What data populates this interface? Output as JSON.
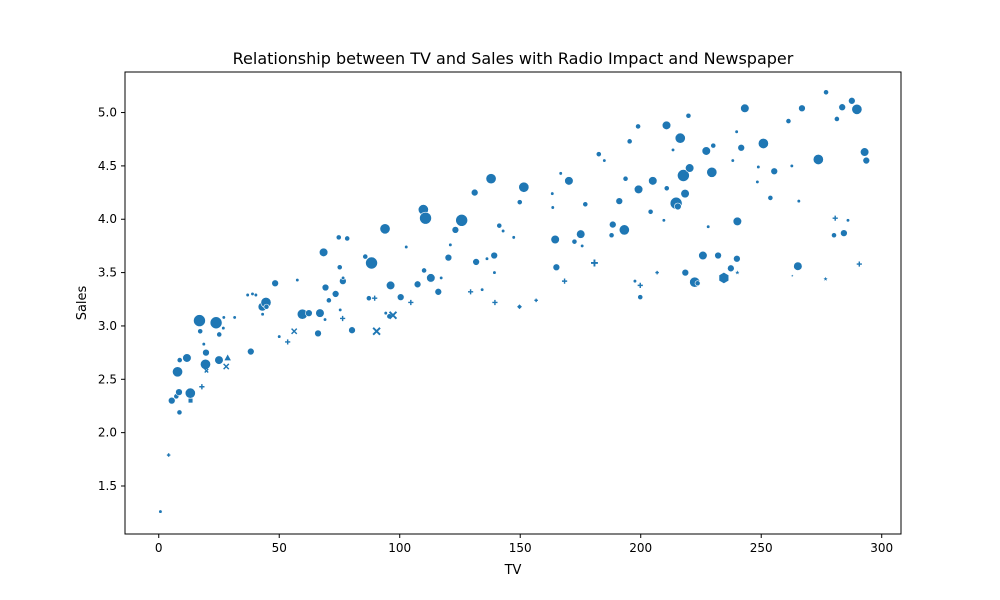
{
  "chart_data": {
    "type": "scatter",
    "title": "Relationship between TV and Sales with Radio Impact and Newspaper",
    "xlabel": "TV",
    "ylabel": "Sales",
    "xlim": [
      -14,
      308
    ],
    "ylim": [
      1.05,
      5.38
    ],
    "xticks": [
      0,
      50,
      100,
      150,
      200,
      250,
      300
    ],
    "yticks": [
      1.5,
      2.0,
      2.5,
      3.0,
      3.5,
      4.0,
      4.5,
      5.0
    ],
    "xtick_labels": [
      "0",
      "50",
      "100",
      "150",
      "200",
      "250",
      "300"
    ],
    "ytick_labels": [
      "1.5",
      "2.0",
      "2.5",
      "3.0",
      "3.5",
      "4.0",
      "4.5",
      "5.0"
    ],
    "grid": false,
    "legend": "none",
    "marker_color": "#1f77b4",
    "size_encoding": "Radio",
    "style_encoding": "Newspaper",
    "points": [
      {
        "x": 0.7,
        "y": 1.26,
        "s": 1,
        "m": "o"
      },
      {
        "x": 4.1,
        "y": 1.79,
        "s": 1,
        "m": "P"
      },
      {
        "x": 5.4,
        "y": 2.3,
        "s": 3,
        "m": "o"
      },
      {
        "x": 7.3,
        "y": 2.34,
        "s": 2,
        "m": "o"
      },
      {
        "x": 7.8,
        "y": 2.57,
        "s": 5,
        "m": "o"
      },
      {
        "x": 8.4,
        "y": 2.38,
        "s": 3,
        "m": "o"
      },
      {
        "x": 8.6,
        "y": 2.19,
        "s": 2,
        "m": "o"
      },
      {
        "x": 8.7,
        "y": 2.68,
        "s": 2,
        "m": "o"
      },
      {
        "x": 11.7,
        "y": 2.7,
        "s": 4,
        "m": "o"
      },
      {
        "x": 13.1,
        "y": 2.37,
        "s": 5,
        "m": "o"
      },
      {
        "x": 13.2,
        "y": 2.3,
        "s": 2,
        "m": "s"
      },
      {
        "x": 16.9,
        "y": 3.05,
        "s": 6,
        "m": "o"
      },
      {
        "x": 17.2,
        "y": 2.95,
        "s": 2,
        "m": "o"
      },
      {
        "x": 17.9,
        "y": 2.43,
        "s": 2,
        "m": "P"
      },
      {
        "x": 18.7,
        "y": 2.83,
        "s": 1,
        "m": "o"
      },
      {
        "x": 19.4,
        "y": 2.64,
        "s": 5,
        "m": "o"
      },
      {
        "x": 19.6,
        "y": 2.75,
        "s": 3,
        "m": "o"
      },
      {
        "x": 19.8,
        "y": 2.58,
        "s": 1,
        "m": "X"
      },
      {
        "x": 23.8,
        "y": 3.03,
        "s": 6,
        "m": "o"
      },
      {
        "x": 25.0,
        "y": 2.68,
        "s": 4,
        "m": "o"
      },
      {
        "x": 25.1,
        "y": 2.92,
        "s": 2,
        "m": "o"
      },
      {
        "x": 26.8,
        "y": 2.98,
        "s": 1,
        "m": "o"
      },
      {
        "x": 27.0,
        "y": 3.08,
        "s": 1,
        "m": "o"
      },
      {
        "x": 28.0,
        "y": 2.62,
        "s": 2,
        "m": "X"
      },
      {
        "x": 28.6,
        "y": 2.7,
        "s": 3,
        "m": "^"
      },
      {
        "x": 31.5,
        "y": 3.08,
        "s": 1,
        "m": "o"
      },
      {
        "x": 36.9,
        "y": 3.29,
        "s": 1,
        "m": "o"
      },
      {
        "x": 38.2,
        "y": 2.76,
        "s": 3,
        "m": "o"
      },
      {
        "x": 38.9,
        "y": 3.3,
        "s": 1,
        "m": "o"
      },
      {
        "x": 40.3,
        "y": 3.29,
        "s": 1,
        "m": "o"
      },
      {
        "x": 43.0,
        "y": 3.18,
        "s": 4,
        "m": "o"
      },
      {
        "x": 43.1,
        "y": 3.11,
        "s": 1,
        "m": "o"
      },
      {
        "x": 44.5,
        "y": 3.22,
        "s": 5,
        "m": "o"
      },
      {
        "x": 44.7,
        "y": 3.18,
        "s": 2,
        "m": "o"
      },
      {
        "x": 48.3,
        "y": 3.4,
        "s": 3,
        "m": "o"
      },
      {
        "x": 50.0,
        "y": 2.9,
        "s": 1,
        "m": "o"
      },
      {
        "x": 53.5,
        "y": 2.85,
        "s": 2,
        "m": "P"
      },
      {
        "x": 56.2,
        "y": 2.95,
        "s": 2,
        "m": "X"
      },
      {
        "x": 57.5,
        "y": 3.43,
        "s": 1,
        "m": "o"
      },
      {
        "x": 59.6,
        "y": 3.11,
        "s": 5,
        "m": "o"
      },
      {
        "x": 62.3,
        "y": 3.12,
        "s": 3,
        "m": "o"
      },
      {
        "x": 66.1,
        "y": 2.93,
        "s": 3,
        "m": "o"
      },
      {
        "x": 66.9,
        "y": 3.12,
        "s": 4,
        "m": "o"
      },
      {
        "x": 68.4,
        "y": 3.69,
        "s": 4,
        "m": "o"
      },
      {
        "x": 69.0,
        "y": 3.06,
        "s": 1,
        "m": "o"
      },
      {
        "x": 69.2,
        "y": 3.36,
        "s": 3,
        "m": "o"
      },
      {
        "x": 70.6,
        "y": 3.24,
        "s": 2,
        "m": "o"
      },
      {
        "x": 73.4,
        "y": 3.3,
        "s": 3,
        "m": "o"
      },
      {
        "x": 74.7,
        "y": 3.83,
        "s": 2,
        "m": "o"
      },
      {
        "x": 75.1,
        "y": 3.55,
        "s": 2,
        "m": "o"
      },
      {
        "x": 75.3,
        "y": 3.15,
        "s": 1,
        "m": "o"
      },
      {
        "x": 76.3,
        "y": 3.07,
        "s": 2,
        "m": "P"
      },
      {
        "x": 76.4,
        "y": 3.42,
        "s": 3,
        "m": "o"
      },
      {
        "x": 76.5,
        "y": 3.45,
        "s": 1,
        "m": "o"
      },
      {
        "x": 78.2,
        "y": 3.82,
        "s": 2,
        "m": "o"
      },
      {
        "x": 80.2,
        "y": 2.96,
        "s": 3,
        "m": "o"
      },
      {
        "x": 85.7,
        "y": 3.65,
        "s": 2,
        "m": "o"
      },
      {
        "x": 87.2,
        "y": 3.26,
        "s": 2,
        "m": "o"
      },
      {
        "x": 88.3,
        "y": 3.59,
        "s": 6,
        "m": "o"
      },
      {
        "x": 89.6,
        "y": 3.26,
        "s": 2,
        "m": "P"
      },
      {
        "x": 90.4,
        "y": 2.95,
        "s": 3,
        "m": "X"
      },
      {
        "x": 93.9,
        "y": 3.91,
        "s": 5,
        "m": "o"
      },
      {
        "x": 94.2,
        "y": 3.12,
        "s": 1,
        "m": "o"
      },
      {
        "x": 95.7,
        "y": 3.09,
        "s": 2,
        "m": "o"
      },
      {
        "x": 96.2,
        "y": 3.38,
        "s": 4,
        "m": "o"
      },
      {
        "x": 97.2,
        "y": 3.1,
        "s": 3,
        "m": "X"
      },
      {
        "x": 100.4,
        "y": 3.27,
        "s": 3,
        "m": "o"
      },
      {
        "x": 102.7,
        "y": 3.74,
        "s": 1,
        "m": "o"
      },
      {
        "x": 104.6,
        "y": 3.22,
        "s": 2,
        "m": "P"
      },
      {
        "x": 107.4,
        "y": 3.39,
        "s": 3,
        "m": "o"
      },
      {
        "x": 109.8,
        "y": 4.09,
        "s": 5,
        "m": "o"
      },
      {
        "x": 110.1,
        "y": 3.52,
        "s": 2,
        "m": "o"
      },
      {
        "x": 110.7,
        "y": 4.01,
        "s": 6,
        "m": "o"
      },
      {
        "x": 112.9,
        "y": 3.45,
        "s": 4,
        "m": "o"
      },
      {
        "x": 116.0,
        "y": 3.32,
        "s": 3,
        "m": "o"
      },
      {
        "x": 117.2,
        "y": 3.45,
        "s": 1,
        "m": "o"
      },
      {
        "x": 120.2,
        "y": 3.64,
        "s": 3,
        "m": "o"
      },
      {
        "x": 121.0,
        "y": 3.76,
        "s": 1,
        "m": "o"
      },
      {
        "x": 123.1,
        "y": 3.9,
        "s": 3,
        "m": "o"
      },
      {
        "x": 125.7,
        "y": 3.99,
        "s": 6,
        "m": "o"
      },
      {
        "x": 129.4,
        "y": 3.32,
        "s": 2,
        "m": "P"
      },
      {
        "x": 131.1,
        "y": 4.25,
        "s": 3,
        "m": "o"
      },
      {
        "x": 131.7,
        "y": 3.6,
        "s": 3,
        "m": "o"
      },
      {
        "x": 134.2,
        "y": 3.34,
        "s": 1,
        "m": "o"
      },
      {
        "x": 136.2,
        "y": 3.63,
        "s": 1,
        "m": "o"
      },
      {
        "x": 137.9,
        "y": 4.38,
        "s": 5,
        "m": "o"
      },
      {
        "x": 139.2,
        "y": 3.66,
        "s": 3,
        "m": "o"
      },
      {
        "x": 139.3,
        "y": 3.5,
        "s": 1,
        "m": "o"
      },
      {
        "x": 139.5,
        "y": 3.22,
        "s": 2,
        "m": "P"
      },
      {
        "x": 141.3,
        "y": 3.94,
        "s": 2,
        "m": "o"
      },
      {
        "x": 142.9,
        "y": 3.89,
        "s": 1,
        "m": "o"
      },
      {
        "x": 147.3,
        "y": 3.83,
        "s": 1,
        "m": "o"
      },
      {
        "x": 149.7,
        "y": 3.18,
        "s": 2,
        "m": "D"
      },
      {
        "x": 149.8,
        "y": 4.16,
        "s": 2,
        "m": "o"
      },
      {
        "x": 151.5,
        "y": 4.3,
        "s": 5,
        "m": "o"
      },
      {
        "x": 156.6,
        "y": 3.24,
        "s": 1,
        "m": "P"
      },
      {
        "x": 163.3,
        "y": 4.24,
        "s": 1,
        "m": "o"
      },
      {
        "x": 163.5,
        "y": 4.11,
        "s": 1,
        "m": "o"
      },
      {
        "x": 164.5,
        "y": 3.81,
        "s": 4,
        "m": "o"
      },
      {
        "x": 165.0,
        "y": 3.55,
        "s": 3,
        "m": "o"
      },
      {
        "x": 166.8,
        "y": 4.43,
        "s": 1,
        "m": "o"
      },
      {
        "x": 168.4,
        "y": 3.42,
        "s": 2,
        "m": "P"
      },
      {
        "x": 170.2,
        "y": 4.36,
        "s": 4,
        "m": "o"
      },
      {
        "x": 172.5,
        "y": 3.79,
        "s": 2,
        "m": "o"
      },
      {
        "x": 175.1,
        "y": 3.86,
        "s": 4,
        "m": "o"
      },
      {
        "x": 175.7,
        "y": 3.75,
        "s": 1,
        "m": "o"
      },
      {
        "x": 177.0,
        "y": 4.14,
        "s": 2,
        "m": "o"
      },
      {
        "x": 180.8,
        "y": 3.59,
        "s": 3,
        "m": "P"
      },
      {
        "x": 182.6,
        "y": 4.61,
        "s": 2,
        "m": "o"
      },
      {
        "x": 184.9,
        "y": 4.55,
        "s": 1,
        "m": "o"
      },
      {
        "x": 187.9,
        "y": 3.85,
        "s": 2,
        "m": "o"
      },
      {
        "x": 188.4,
        "y": 3.95,
        "s": 3,
        "m": "o"
      },
      {
        "x": 191.1,
        "y": 4.17,
        "s": 3,
        "m": "o"
      },
      {
        "x": 193.2,
        "y": 3.9,
        "s": 5,
        "m": "o"
      },
      {
        "x": 193.7,
        "y": 4.38,
        "s": 2,
        "m": "o"
      },
      {
        "x": 195.4,
        "y": 4.73,
        "s": 2,
        "m": "o"
      },
      {
        "x": 197.6,
        "y": 3.42,
        "s": 1,
        "m": "o"
      },
      {
        "x": 198.9,
        "y": 4.87,
        "s": 2,
        "m": "o"
      },
      {
        "x": 199.1,
        "y": 4.28,
        "s": 4,
        "m": "o"
      },
      {
        "x": 199.8,
        "y": 3.38,
        "s": 2,
        "m": "P"
      },
      {
        "x": 199.8,
        "y": 3.27,
        "s": 2,
        "m": "o"
      },
      {
        "x": 204.1,
        "y": 4.07,
        "s": 2,
        "m": "o"
      },
      {
        "x": 205.0,
        "y": 4.36,
        "s": 4,
        "m": "o"
      },
      {
        "x": 206.8,
        "y": 3.5,
        "s": 1,
        "m": "P"
      },
      {
        "x": 209.6,
        "y": 3.99,
        "s": 1,
        "m": "o"
      },
      {
        "x": 210.7,
        "y": 4.88,
        "s": 4,
        "m": "o"
      },
      {
        "x": 210.8,
        "y": 4.29,
        "s": 2,
        "m": "o"
      },
      {
        "x": 213.4,
        "y": 4.65,
        "s": 1,
        "m": "o"
      },
      {
        "x": 214.7,
        "y": 4.15,
        "s": 6,
        "m": "o"
      },
      {
        "x": 215.4,
        "y": 4.12,
        "s": 3,
        "m": "o"
      },
      {
        "x": 216.4,
        "y": 4.76,
        "s": 5,
        "m": "o"
      },
      {
        "x": 217.7,
        "y": 4.41,
        "s": 6,
        "m": "o"
      },
      {
        "x": 218.4,
        "y": 4.24,
        "s": 4,
        "m": "o"
      },
      {
        "x": 218.5,
        "y": 3.5,
        "s": 3,
        "m": "o"
      },
      {
        "x": 219.8,
        "y": 4.97,
        "s": 2,
        "m": "o"
      },
      {
        "x": 220.3,
        "y": 4.48,
        "s": 4,
        "m": "o"
      },
      {
        "x": 222.4,
        "y": 3.41,
        "s": 5,
        "m": "o"
      },
      {
        "x": 223.6,
        "y": 3.4,
        "s": 2,
        "m": "o"
      },
      {
        "x": 225.8,
        "y": 3.66,
        "s": 4,
        "m": "o"
      },
      {
        "x": 227.2,
        "y": 4.64,
        "s": 4,
        "m": "o"
      },
      {
        "x": 228.0,
        "y": 3.93,
        "s": 1,
        "m": "o"
      },
      {
        "x": 229.5,
        "y": 4.44,
        "s": 5,
        "m": "o"
      },
      {
        "x": 230.1,
        "y": 4.69,
        "s": 2,
        "m": "o"
      },
      {
        "x": 232.1,
        "y": 3.66,
        "s": 3,
        "m": "o"
      },
      {
        "x": 234.5,
        "y": 3.45,
        "s": 5,
        "m": "h"
      },
      {
        "x": 237.4,
        "y": 3.54,
        "s": 3,
        "m": "o"
      },
      {
        "x": 238.2,
        "y": 4.55,
        "s": 1,
        "m": "o"
      },
      {
        "x": 239.8,
        "y": 4.82,
        "s": 1,
        "m": "o"
      },
      {
        "x": 239.9,
        "y": 3.63,
        "s": 3,
        "m": "o"
      },
      {
        "x": 240.1,
        "y": 3.5,
        "s": 2,
        "m": "*"
      },
      {
        "x": 240.1,
        "y": 3.98,
        "s": 4,
        "m": "o"
      },
      {
        "x": 241.7,
        "y": 4.67,
        "s": 3,
        "m": "o"
      },
      {
        "x": 243.2,
        "y": 5.04,
        "s": 4,
        "m": "o"
      },
      {
        "x": 248.4,
        "y": 4.35,
        "s": 1,
        "m": "o"
      },
      {
        "x": 248.8,
        "y": 4.49,
        "s": 1,
        "m": "o"
      },
      {
        "x": 250.9,
        "y": 4.71,
        "s": 5,
        "m": "o"
      },
      {
        "x": 253.8,
        "y": 4.2,
        "s": 2,
        "m": "o"
      },
      {
        "x": 255.4,
        "y": 4.45,
        "s": 3,
        "m": "o"
      },
      {
        "x": 261.3,
        "y": 4.92,
        "s": 2,
        "m": "o"
      },
      {
        "x": 262.7,
        "y": 4.5,
        "s": 1,
        "m": "o"
      },
      {
        "x": 262.9,
        "y": 3.47,
        "s": 1,
        "m": "*"
      },
      {
        "x": 265.2,
        "y": 3.56,
        "s": 4,
        "m": "o"
      },
      {
        "x": 265.6,
        "y": 4.17,
        "s": 1,
        "m": "o"
      },
      {
        "x": 266.9,
        "y": 5.04,
        "s": 3,
        "m": "o"
      },
      {
        "x": 273.7,
        "y": 4.56,
        "s": 5,
        "m": "o"
      },
      {
        "x": 276.7,
        "y": 3.44,
        "s": 2,
        "m": "*"
      },
      {
        "x": 276.9,
        "y": 5.19,
        "s": 2,
        "m": "o"
      },
      {
        "x": 280.2,
        "y": 3.85,
        "s": 2,
        "m": "o"
      },
      {
        "x": 280.7,
        "y": 4.01,
        "s": 2,
        "m": "P"
      },
      {
        "x": 281.4,
        "y": 4.94,
        "s": 2,
        "m": "o"
      },
      {
        "x": 283.6,
        "y": 5.05,
        "s": 3,
        "m": "o"
      },
      {
        "x": 284.3,
        "y": 3.87,
        "s": 3,
        "m": "o"
      },
      {
        "x": 286.0,
        "y": 3.99,
        "s": 1,
        "m": "o"
      },
      {
        "x": 287.6,
        "y": 5.11,
        "s": 3,
        "m": "o"
      },
      {
        "x": 289.7,
        "y": 5.03,
        "s": 5,
        "m": "o"
      },
      {
        "x": 290.7,
        "y": 3.58,
        "s": 2,
        "m": "P"
      },
      {
        "x": 292.9,
        "y": 4.63,
        "s": 4,
        "m": "o"
      },
      {
        "x": 293.6,
        "y": 4.55,
        "s": 3,
        "m": "o"
      }
    ]
  }
}
